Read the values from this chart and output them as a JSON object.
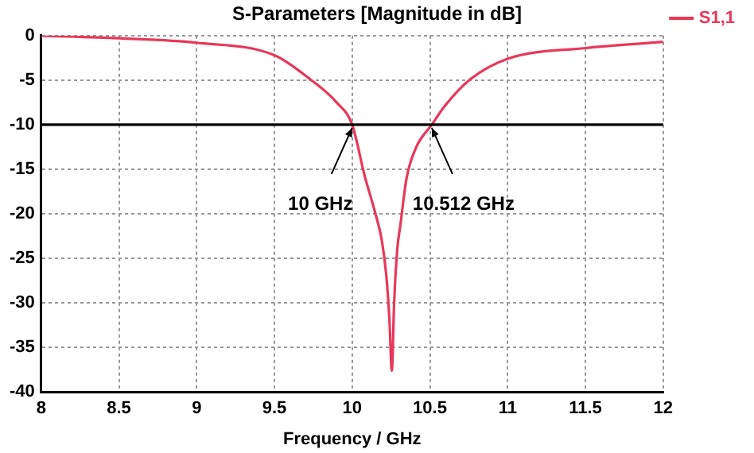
{
  "chart_data": {
    "type": "line",
    "title": "S-Parameters [Magnitude in dB]",
    "xlabel": "Frequency / GHz",
    "x": [
      8,
      8.5,
      9,
      9.5,
      9.73,
      9.9,
      10,
      10.08,
      10.15,
      10.19,
      10.22,
      10.24,
      10.255,
      10.27,
      10.29,
      10.31,
      10.35,
      10.41,
      10.512,
      10.6,
      10.76,
      11,
      11.5,
      12
    ],
    "series": [
      {
        "name": "S1,1",
        "color": "#e8385a",
        "values": [
          0,
          -0.3,
          -0.8,
          -2.2,
          -4.9,
          -7.5,
          -10,
          -15.7,
          -20,
          -22.9,
          -27,
          -32,
          -37.6,
          -30,
          -24,
          -21.3,
          -16,
          -12.6,
          -10,
          -7.8,
          -4.9,
          -2.6,
          -1.4,
          -0.7
        ]
      }
    ],
    "xlim": [
      8,
      12
    ],
    "xticks": [
      8,
      8.5,
      9,
      9.5,
      10,
      10.5,
      11,
      11.5,
      12
    ],
    "ylim": [
      -40,
      0
    ],
    "yticks": [
      0,
      -5,
      -10,
      -15,
      -20,
      -25,
      -30,
      -35,
      -40
    ],
    "grid": true,
    "legend": "top right",
    "marker": "none",
    "line_style": "solid",
    "ref_lines": [
      {
        "axis": "y",
        "value": -10,
        "color": "#000000"
      }
    ],
    "annotations": [
      {
        "text": "10 GHz",
        "x": 10,
        "y": -10
      },
      {
        "text": "10.512 GHz",
        "x": 10.512,
        "y": -10
      }
    ]
  }
}
